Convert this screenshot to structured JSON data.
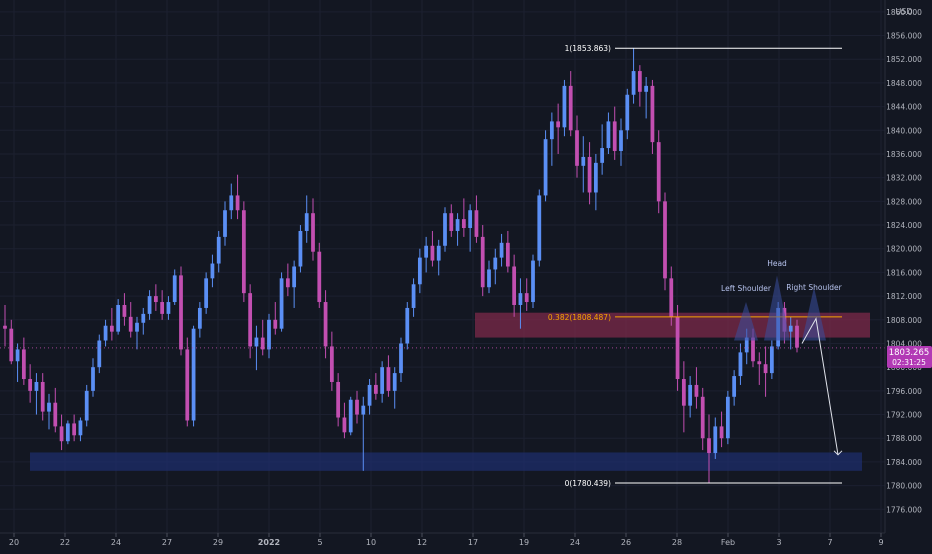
{
  "chart_data": {
    "type": "candlestick",
    "currency": "USD",
    "ylim": [
      1772.0,
      1862.0
    ],
    "y_ticks": [
      "1776.000",
      "1780.000",
      "1784.000",
      "1788.000",
      "1792.000",
      "1796.000",
      "1800.000",
      "1804.000",
      "1808.000",
      "1812.000",
      "1816.000",
      "1820.000",
      "1824.000",
      "1828.000",
      "1832.000",
      "1836.000",
      "1840.000",
      "1844.000",
      "1848.000",
      "1852.000",
      "1856.000",
      "1860.000"
    ],
    "x_ticks": [
      "20",
      "22",
      "24",
      "27",
      "29",
      "2022",
      "5",
      "10",
      "12",
      "17",
      "19",
      "24",
      "26",
      "28",
      "Feb",
      "3",
      "7",
      "9"
    ],
    "ohlc": [
      [
        1807.0,
        1810.5,
        1803.5,
        1806.5
      ],
      [
        1806.5,
        1808.0,
        1800.5,
        1801.0
      ],
      [
        1801.0,
        1804.0,
        1797.5,
        1803.0
      ],
      [
        1803.0,
        1805.0,
        1797.0,
        1798.0
      ],
      [
        1798.0,
        1800.5,
        1794.0,
        1796.0
      ],
      [
        1796.0,
        1799.0,
        1792.0,
        1797.5
      ],
      [
        1797.5,
        1799.0,
        1791.0,
        1792.5
      ],
      [
        1792.5,
        1795.5,
        1789.5,
        1794.0
      ],
      [
        1794.0,
        1796.5,
        1789.0,
        1790.0
      ],
      [
        1790.0,
        1792.0,
        1786.0,
        1787.5
      ],
      [
        1787.5,
        1791.0,
        1787.0,
        1790.5
      ],
      [
        1790.5,
        1792.0,
        1787.5,
        1788.5
      ],
      [
        1788.5,
        1791.5,
        1787.5,
        1791.0
      ],
      [
        1791.0,
        1797.0,
        1790.0,
        1796.0
      ],
      [
        1796.0,
        1801.5,
        1795.0,
        1800.0
      ],
      [
        1800.0,
        1805.5,
        1799.0,
        1804.5
      ],
      [
        1804.5,
        1808.0,
        1803.5,
        1807.0
      ],
      [
        1807.0,
        1810.0,
        1804.5,
        1806.0
      ],
      [
        1806.0,
        1811.5,
        1805.5,
        1810.5
      ],
      [
        1810.5,
        1812.5,
        1807.0,
        1808.5
      ],
      [
        1808.5,
        1811.0,
        1805.0,
        1806.0
      ],
      [
        1806.0,
        1808.5,
        1803.0,
        1807.5
      ],
      [
        1807.5,
        1810.0,
        1805.5,
        1809.0
      ],
      [
        1809.0,
        1813.0,
        1808.0,
        1812.0
      ],
      [
        1812.0,
        1814.0,
        1809.5,
        1811.0
      ],
      [
        1811.0,
        1813.0,
        1808.0,
        1809.0
      ],
      [
        1809.0,
        1812.0,
        1808.0,
        1811.0
      ],
      [
        1811.0,
        1816.5,
        1810.5,
        1815.5
      ],
      [
        1815.5,
        1817.0,
        1802.0,
        1803.0
      ],
      [
        1803.0,
        1805.0,
        1790.0,
        1791.0
      ],
      [
        1791.0,
        1807.0,
        1790.0,
        1806.5
      ],
      [
        1806.5,
        1811.0,
        1805.0,
        1810.0
      ],
      [
        1810.0,
        1816.0,
        1809.0,
        1815.0
      ],
      [
        1815.0,
        1819.0,
        1813.5,
        1817.5
      ],
      [
        1817.5,
        1823.0,
        1816.0,
        1822.0
      ],
      [
        1822.0,
        1828.0,
        1820.5,
        1826.5
      ],
      [
        1826.5,
        1831.0,
        1825.0,
        1829.0
      ],
      [
        1829.0,
        1832.5,
        1825.0,
        1826.5
      ],
      [
        1826.5,
        1828.0,
        1811.0,
        1812.5
      ],
      [
        1812.5,
        1814.0,
        1801.5,
        1803.5
      ],
      [
        1803.5,
        1807.0,
        1799.5,
        1805.0
      ],
      [
        1805.0,
        1808.0,
        1802.0,
        1803.0
      ],
      [
        1803.0,
        1809.0,
        1801.5,
        1808.0
      ],
      [
        1808.0,
        1811.0,
        1805.5,
        1806.5
      ],
      [
        1806.5,
        1816.0,
        1806.0,
        1815.0
      ],
      [
        1815.0,
        1817.5,
        1812.0,
        1813.5
      ],
      [
        1813.5,
        1818.0,
        1810.0,
        1817.0
      ],
      [
        1817.0,
        1824.0,
        1816.0,
        1823.0
      ],
      [
        1823.0,
        1829.0,
        1821.0,
        1826.0
      ],
      [
        1826.0,
        1828.5,
        1818.0,
        1819.5
      ],
      [
        1819.5,
        1821.0,
        1810.0,
        1811.0
      ],
      [
        1811.0,
        1813.0,
        1801.5,
        1803.5
      ],
      [
        1803.5,
        1806.0,
        1796.0,
        1797.5
      ],
      [
        1797.5,
        1799.0,
        1790.0,
        1791.5
      ],
      [
        1791.5,
        1794.0,
        1788.0,
        1789.0
      ],
      [
        1789.0,
        1795.0,
        1788.5,
        1794.5
      ],
      [
        1794.5,
        1796.0,
        1790.5,
        1792.0
      ],
      [
        1792.0,
        1795.0,
        1782.5,
        1793.5
      ],
      [
        1793.5,
        1798.0,
        1792.0,
        1797.0
      ],
      [
        1797.0,
        1799.0,
        1794.5,
        1795.5
      ],
      [
        1795.5,
        1801.0,
        1794.0,
        1800.0
      ],
      [
        1800.0,
        1802.0,
        1795.0,
        1796.0
      ],
      [
        1796.0,
        1800.0,
        1793.0,
        1799.0
      ],
      [
        1799.0,
        1805.0,
        1797.5,
        1804.0
      ],
      [
        1804.0,
        1811.0,
        1803.0,
        1810.0
      ],
      [
        1810.0,
        1815.0,
        1808.5,
        1814.0
      ],
      [
        1814.0,
        1820.0,
        1812.5,
        1818.5
      ],
      [
        1818.5,
        1822.0,
        1816.0,
        1820.5
      ],
      [
        1820.5,
        1823.0,
        1817.0,
        1818.0
      ],
      [
        1818.0,
        1821.5,
        1815.5,
        1820.5
      ],
      [
        1820.5,
        1827.0,
        1819.5,
        1826.0
      ],
      [
        1826.0,
        1827.5,
        1822.0,
        1823.0
      ],
      [
        1823.0,
        1826.0,
        1820.5,
        1825.0
      ],
      [
        1825.0,
        1828.5,
        1822.0,
        1823.5
      ],
      [
        1823.5,
        1827.5,
        1819.5,
        1826.5
      ],
      [
        1826.5,
        1829.0,
        1821.0,
        1822.0
      ],
      [
        1822.0,
        1824.0,
        1812.0,
        1813.5
      ],
      [
        1813.5,
        1818.0,
        1812.5,
        1816.5
      ],
      [
        1816.5,
        1820.0,
        1814.0,
        1818.5
      ],
      [
        1818.5,
        1822.5,
        1817.0,
        1821.0
      ],
      [
        1821.0,
        1823.0,
        1816.0,
        1817.0
      ],
      [
        1817.0,
        1819.0,
        1808.5,
        1810.5
      ],
      [
        1810.5,
        1815.0,
        1806.5,
        1812.5
      ],
      [
        1812.5,
        1815.0,
        1809.5,
        1811.0
      ],
      [
        1811.0,
        1819.0,
        1810.0,
        1818.0
      ],
      [
        1818.0,
        1830.0,
        1817.0,
        1829.0
      ],
      [
        1829.0,
        1840.0,
        1828.0,
        1838.5
      ],
      [
        1838.5,
        1843.0,
        1834.0,
        1841.5
      ],
      [
        1841.5,
        1844.5,
        1836.0,
        1840.5
      ],
      [
        1840.5,
        1848.5,
        1839.0,
        1847.5
      ],
      [
        1847.5,
        1850.0,
        1839.0,
        1840.0
      ],
      [
        1840.0,
        1842.5,
        1832.0,
        1834.0
      ],
      [
        1834.0,
        1839.0,
        1829.5,
        1835.5
      ],
      [
        1835.5,
        1838.0,
        1827.5,
        1829.5
      ],
      [
        1829.5,
        1836.0,
        1826.5,
        1834.5
      ],
      [
        1834.5,
        1841.0,
        1832.5,
        1837.0
      ],
      [
        1837.0,
        1843.0,
        1836.0,
        1841.5
      ],
      [
        1841.5,
        1844.0,
        1835.0,
        1836.5
      ],
      [
        1836.5,
        1842.0,
        1834.0,
        1840.0
      ],
      [
        1840.0,
        1847.0,
        1838.5,
        1846.0
      ],
      [
        1846.0,
        1853.9,
        1844.5,
        1850.0
      ],
      [
        1850.0,
        1851.0,
        1844.0,
        1846.5
      ],
      [
        1846.5,
        1849.0,
        1842.0,
        1847.5
      ],
      [
        1847.5,
        1848.5,
        1836.0,
        1838.0
      ],
      [
        1838.0,
        1840.0,
        1826.0,
        1828.0
      ],
      [
        1828.0,
        1829.5,
        1813.0,
        1815.0
      ],
      [
        1815.0,
        1817.0,
        1807.0,
        1808.5
      ],
      [
        1808.5,
        1810.5,
        1796.0,
        1798.0
      ],
      [
        1798.0,
        1801.0,
        1789.0,
        1793.5
      ],
      [
        1793.5,
        1798.5,
        1791.5,
        1797.0
      ],
      [
        1797.0,
        1800.0,
        1793.0,
        1795.0
      ],
      [
        1795.0,
        1796.5,
        1786.0,
        1788.0
      ],
      [
        1788.0,
        1792.0,
        1780.5,
        1785.5
      ],
      [
        1785.5,
        1791.5,
        1784.5,
        1790.0
      ],
      [
        1790.0,
        1792.5,
        1786.5,
        1788.0
      ],
      [
        1788.0,
        1796.0,
        1787.0,
        1795.0
      ],
      [
        1795.0,
        1799.5,
        1793.5,
        1798.5
      ],
      [
        1798.5,
        1804.0,
        1797.0,
        1802.5
      ],
      [
        1802.5,
        1806.5,
        1800.5,
        1805.0
      ],
      [
        1805.0,
        1806.5,
        1800.0,
        1801.0
      ],
      [
        1801.0,
        1802.5,
        1797.0,
        1800.5
      ],
      [
        1800.5,
        1803.5,
        1795.0,
        1799.0
      ],
      [
        1799.0,
        1804.5,
        1798.0,
        1803.5
      ],
      [
        1803.5,
        1811.0,
        1803.0,
        1810.0
      ],
      [
        1810.0,
        1811.0,
        1804.0,
        1806.0
      ],
      [
        1806.0,
        1808.5,
        1803.0,
        1807.0
      ],
      [
        1807.0,
        1808.0,
        1802.5,
        1803.3
      ]
    ],
    "fib_levels": [
      {
        "label": "1(1853.863)",
        "price": 1853.863
      },
      {
        "label": "0.382(1808.487)",
        "price": 1808.487
      },
      {
        "label": "0(1780.439)",
        "price": 1780.439
      }
    ],
    "zones": [
      {
        "name": "resistance",
        "top": 1809.2,
        "bottom": 1805.0
      },
      {
        "name": "support",
        "top": 1785.6,
        "bottom": 1782.5
      }
    ],
    "annotations": [
      "Left Shoulder",
      "Head",
      "Right Shoulder"
    ],
    "last_price": "1803.265",
    "countdown": "02:31:25",
    "colors": {
      "bg": "#131722",
      "up": "#5b8ff5",
      "down": "#c24fb1",
      "grid": "#1c2030",
      "text": "#b2b5be",
      "fib_high": "#ffffff",
      "fib_mid": "#f7a600",
      "resistance": "#7c2a4a",
      "support": "#1e2d6b",
      "price_tag": "#b23ab5"
    }
  }
}
